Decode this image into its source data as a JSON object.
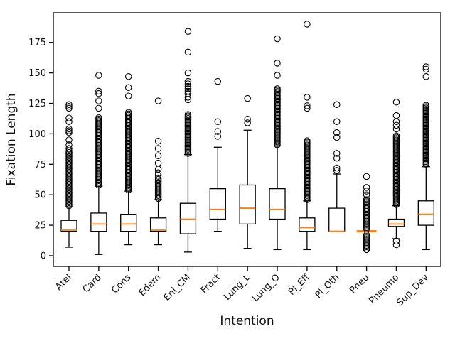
{
  "figure": {
    "background": "#ffffff",
    "box_edge_color": "#000000",
    "median_color": "#ff7f0e",
    "text_color": "#111111"
  },
  "chart_data": {
    "type": "boxplot",
    "title": "",
    "xlabel": "Intention",
    "ylabel": "Fixation Length",
    "ylim": [
      -9,
      199
    ],
    "yticks": [
      0,
      25,
      50,
      75,
      100,
      125,
      150,
      175
    ],
    "grid": false,
    "legend": "none",
    "categories": [
      "Atel",
      "Card",
      "Cons",
      "Edem",
      "Enl_CM",
      "Fract",
      "Lung_L",
      "Lung_O",
      "Pl_Eff",
      "Pl_Oth",
      "Pneu",
      "Pneumo",
      "Sup_Dev"
    ],
    "series": [
      {
        "name": "Atel",
        "whisker_low": 7,
        "q1": 20,
        "median": 21,
        "q3": 29,
        "whisker_high": 40,
        "outliers_dense": [
          [
            41,
            86,
            1.25
          ]
        ],
        "outliers": [
          88,
          91,
          95,
          101,
          102.5,
          104,
          110,
          113,
          121,
          122.5,
          124
        ]
      },
      {
        "name": "Card",
        "whisker_low": 1,
        "q1": 20,
        "median": 26,
        "q3": 35,
        "whisker_high": 57,
        "outliers_dense": [
          [
            58,
            114,
            1.2
          ]
        ],
        "outliers": [
          121,
          127,
          133,
          135,
          148
        ]
      },
      {
        "name": "Cons",
        "whisker_low": 9,
        "q1": 20,
        "median": 26,
        "q3": 34,
        "whisker_high": 53,
        "outliers_dense": [
          [
            54,
            118,
            1.2
          ]
        ],
        "outliers": [
          131,
          138,
          147
        ]
      },
      {
        "name": "Edem",
        "whisker_low": 9,
        "q1": 20,
        "median": 21,
        "q3": 31,
        "whisker_high": 46,
        "outliers_dense": [
          [
            47,
            64,
            1.2
          ]
        ],
        "outliers": [
          66,
          68,
          71,
          76,
          82,
          88,
          94,
          127
        ]
      },
      {
        "name": "Enl_CM",
        "whisker_low": 3,
        "q1": 18,
        "median": 30,
        "q3": 43,
        "whisker_high": 83,
        "outliers_dense": [
          [
            84,
            116,
            1.1
          ]
        ],
        "outliers": [
          128,
          130,
          133,
          135,
          137,
          139,
          141,
          143,
          150,
          167,
          184
        ]
      },
      {
        "name": "Fract",
        "whisker_low": 20,
        "q1": 30,
        "median": 38,
        "q3": 55,
        "whisker_high": 89,
        "outliers_dense": [],
        "outliers": [
          98,
          102,
          110,
          143
        ]
      },
      {
        "name": "Lung_L",
        "whisker_low": 6,
        "q1": 26,
        "median": 39,
        "q3": 58,
        "whisker_high": 103,
        "outliers_dense": [],
        "outliers": [
          109,
          112,
          129
        ]
      },
      {
        "name": "Lung_O",
        "whisker_low": 5,
        "q1": 30,
        "median": 38,
        "q3": 55,
        "whisker_high": 90,
        "outliers_dense": [
          [
            91,
            138,
            1.15
          ]
        ],
        "outliers": [
          148,
          158,
          178
        ]
      },
      {
        "name": "Pl_Eff",
        "whisker_low": 5,
        "q1": 20,
        "median": 23,
        "q3": 31,
        "whisker_high": 45,
        "outliers_dense": [
          [
            46,
            95,
            1.15
          ]
        ],
        "outliers": [
          121,
          123,
          130,
          190
        ]
      },
      {
        "name": "Pl_Oth",
        "whisker_low": 20,
        "q1": 20,
        "median": 20,
        "q3": 39,
        "whisker_high": 67,
        "outliers_dense": [],
        "outliers": [
          70,
          72,
          80,
          84,
          97,
          101,
          110,
          124
        ]
      },
      {
        "name": "Pneu",
        "whisker_low": 20,
        "q1": 20,
        "median": 20,
        "q3": 20,
        "whisker_high": 20,
        "outliers_dense": [
          [
            5,
            17.5,
            1.2
          ],
          [
            22,
            47,
            1.2
          ]
        ],
        "outliers": [
          50,
          53,
          56,
          65
        ]
      },
      {
        "name": "Pneumo",
        "whisker_low": 14,
        "q1": 24,
        "median": 26,
        "q3": 30,
        "whisker_high": 41,
        "outliers_dense": [
          [
            42,
            99,
            1.15
          ]
        ],
        "outliers": [
          9,
          12,
          104,
          107,
          110,
          115,
          126
        ]
      },
      {
        "name": "Sup_Dev",
        "whisker_low": 5,
        "q1": 25,
        "median": 34,
        "q3": 45,
        "whisker_high": 73,
        "outliers_dense": [
          [
            75,
            124,
            1.1
          ]
        ],
        "outliers": [
          147,
          153,
          155
        ]
      }
    ]
  }
}
